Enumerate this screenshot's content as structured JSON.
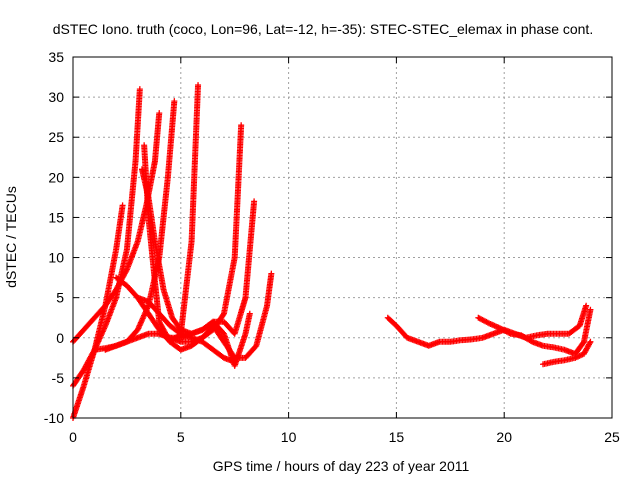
{
  "chart_data": {
    "type": "scatter",
    "title": "dSTEC Iono. truth (coco, Lon=96, Lat=-12, h=-35): STEC-STEC_elemax in phase cont.",
    "xlabel": "GPS time / hours of day 223 of year 2011",
    "ylabel": "dSTEC  / TECUs",
    "xlim": [
      0,
      25
    ],
    "ylim": [
      -10,
      35
    ],
    "x_ticks": [
      "0",
      "5",
      "10",
      "15",
      "20",
      "25"
    ],
    "y_ticks": [
      "-10",
      "-5",
      "0",
      "5",
      "10",
      "15",
      "20",
      "25",
      "30",
      "35"
    ],
    "grid": true,
    "marker": "+",
    "colors": {
      "series": "#ff0000",
      "grid": "#a0a0a0",
      "axis": "#000000"
    },
    "series": [
      {
        "x": [
          0.0,
          0.5,
          1.0,
          1.5,
          2.0,
          2.3
        ],
        "y": [
          -10.0,
          -6.0,
          -1.5,
          4.0,
          11.0,
          16.5
        ]
      },
      {
        "x": [
          0.0,
          0.5,
          1.0,
          1.5,
          2.0,
          2.5,
          2.9,
          3.1
        ],
        "y": [
          -6.0,
          -4.0,
          -1.5,
          1.5,
          5.0,
          11.0,
          22.0,
          31.0
        ]
      },
      {
        "x": [
          0.0,
          0.5,
          1.0,
          1.5,
          2.0,
          2.5,
          3.0,
          3.4,
          3.8,
          4.0
        ],
        "y": [
          -0.5,
          1.0,
          2.5,
          4.0,
          6.0,
          8.5,
          12.0,
          16.5,
          22.0,
          28.0
        ]
      },
      {
        "x": [
          1.0,
          1.5,
          2.0,
          2.5,
          3.0,
          3.5,
          4.0,
          4.4,
          4.7
        ],
        "y": [
          -1.5,
          -1.3,
          -1.0,
          -0.5,
          1.0,
          4.0,
          10.0,
          20.0,
          29.5
        ]
      },
      {
        "x": [
          3.3,
          3.5,
          3.8,
          4.0,
          4.5,
          5.0,
          5.5,
          5.8
        ],
        "y": [
          24.0,
          15.0,
          7.0,
          2.0,
          -0.5,
          0.5,
          12.0,
          31.5
        ]
      },
      {
        "x": [
          2.0,
          2.5,
          3.0,
          3.5,
          4.0,
          4.5,
          5.0,
          5.5,
          6.0,
          6.5,
          7.0,
          7.5,
          7.8
        ],
        "y": [
          7.5,
          6.5,
          5.0,
          3.0,
          1.0,
          -0.5,
          -1.5,
          -1.0,
          0.0,
          1.0,
          3.0,
          10.0,
          26.5
        ]
      },
      {
        "x": [
          3.0,
          3.5,
          4.0,
          4.5,
          5.0,
          5.5,
          6.0,
          6.5,
          7.0,
          7.5
        ],
        "y": [
          5.0,
          4.5,
          3.0,
          1.5,
          0.5,
          0.0,
          -0.5,
          -1.5,
          -2.5,
          -3.0
        ]
      },
      {
        "x": [
          3.2,
          3.5,
          3.8,
          4.2,
          4.6,
          5.0,
          5.5,
          6.0,
          6.5,
          7.0,
          7.5,
          8.0,
          8.4
        ],
        "y": [
          21.0,
          17.5,
          12.0,
          6.0,
          2.5,
          1.0,
          0.5,
          1.0,
          2.0,
          2.0,
          0.5,
          5.0,
          17.0
        ]
      },
      {
        "x": [
          4.0,
          4.5,
          5.0,
          5.5,
          6.0,
          6.5,
          7.0,
          7.5,
          8.0,
          8.5,
          9.0,
          9.2
        ],
        "y": [
          0.5,
          0.0,
          -0.5,
          -0.5,
          0.0,
          1.5,
          -0.5,
          -2.5,
          -2.5,
          -1.0,
          4.0,
          8.0
        ]
      },
      {
        "x": [
          1.5,
          2.0,
          2.5,
          3.0,
          3.5,
          4.0,
          4.5,
          5.0,
          5.5,
          6.0,
          6.5,
          7.0,
          7.5,
          8.0,
          8.2
        ],
        "y": [
          -1.5,
          -1.0,
          -0.5,
          0.0,
          0.5,
          0.5,
          0.0,
          0.0,
          0.5,
          1.0,
          2.0,
          0.5,
          -3.5,
          0.5,
          3.0
        ]
      },
      {
        "x": [
          14.6,
          15.0,
          15.5,
          16.0,
          16.5,
          17.0,
          17.5,
          18.0,
          18.5,
          19.0,
          19.5,
          20.0,
          20.5,
          21.0,
          21.5,
          22.0,
          22.5,
          23.0,
          23.5,
          23.8
        ],
        "y": [
          2.5,
          1.5,
          0.0,
          -0.5,
          -1.0,
          -0.5,
          -0.5,
          -0.3,
          -0.2,
          0.0,
          0.5,
          1.0,
          0.5,
          0.0,
          0.3,
          0.5,
          0.5,
          0.5,
          1.5,
          4.0
        ]
      },
      {
        "x": [
          18.8,
          19.3,
          19.8,
          20.3,
          20.8,
          21.3,
          21.8,
          22.3,
          22.8,
          23.3,
          23.7,
          24.0
        ],
        "y": [
          2.5,
          1.8,
          1.2,
          0.5,
          0.3,
          -0.5,
          -1.0,
          -1.2,
          -1.5,
          -2.0,
          -0.5,
          3.5
        ]
      },
      {
        "x": [
          21.8,
          22.3,
          22.8,
          23.3,
          23.7,
          24.0
        ],
        "y": [
          -3.3,
          -3.0,
          -2.8,
          -2.5,
          -2.0,
          -0.5
        ]
      }
    ]
  }
}
